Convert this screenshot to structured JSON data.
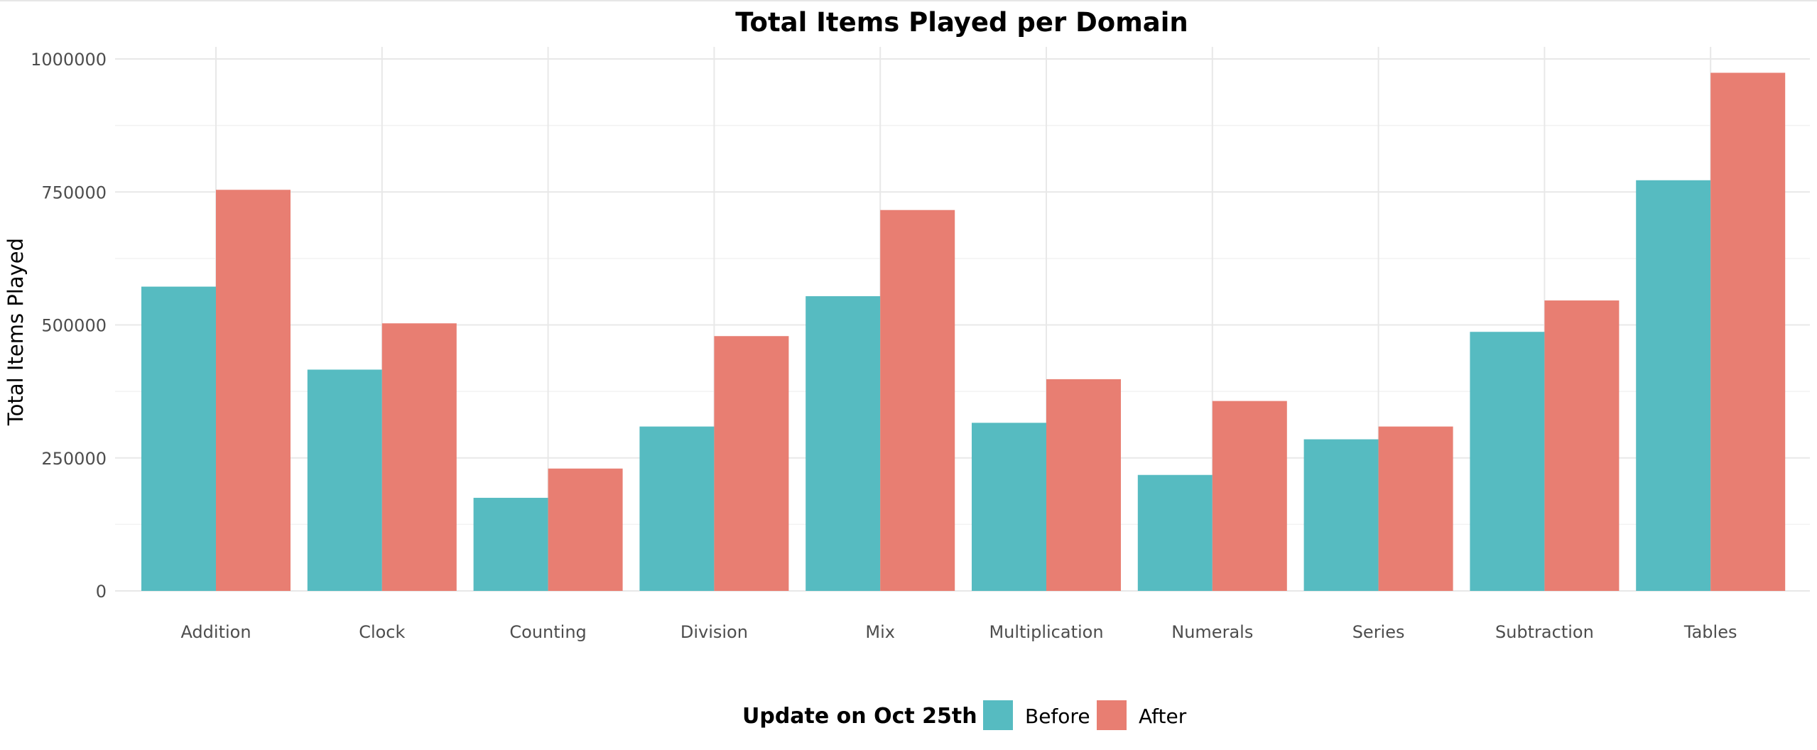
{
  "chart_data": {
    "type": "bar",
    "title": "Total Items Played per Domain",
    "xlabel": "",
    "ylabel": "Total Items Played",
    "categories": [
      "Addition",
      "Clock",
      "Counting",
      "Division",
      "Mix",
      "Multiplication",
      "Numerals",
      "Series",
      "Subtraction",
      "Tables"
    ],
    "series": [
      {
        "name": "Before",
        "color": "#56BBC1",
        "values": [
          572000,
          416000,
          175000,
          309000,
          554000,
          316000,
          218000,
          285000,
          487000,
          772000
        ]
      },
      {
        "name": "After",
        "color": "#E87E72",
        "values": [
          754000,
          503000,
          230000,
          479000,
          716000,
          398000,
          357000,
          309000,
          546000,
          974000
        ]
      }
    ],
    "ylim": [
      0,
      1000000
    ],
    "yticks": [
      0,
      250000,
      500000,
      750000,
      1000000
    ],
    "ytick_labels": [
      "0",
      "250000",
      "500000",
      "750000",
      "1000000"
    ],
    "grid": true,
    "legend": {
      "title": "Update on Oct 25th",
      "position": "bottom",
      "entries": [
        "Before",
        "After"
      ]
    }
  }
}
